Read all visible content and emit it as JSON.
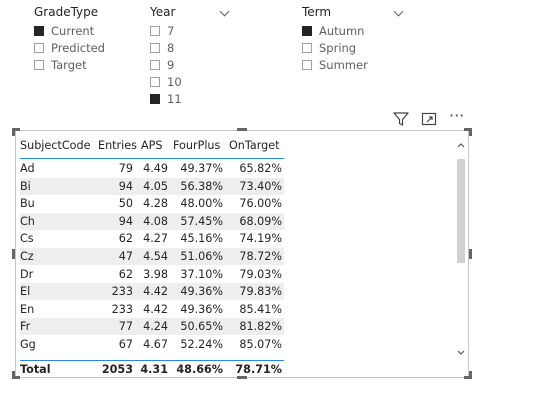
{
  "slicers": {
    "gradetype": {
      "title": "GradeType",
      "options": [
        {
          "label": "Current",
          "checked": true
        },
        {
          "label": "Predicted",
          "checked": false
        },
        {
          "label": "Target",
          "checked": false
        }
      ]
    },
    "year": {
      "title": "Year",
      "options": [
        {
          "label": "7",
          "checked": false
        },
        {
          "label": "8",
          "checked": false
        },
        {
          "label": "9",
          "checked": false
        },
        {
          "label": "10",
          "checked": false
        },
        {
          "label": "11",
          "checked": true
        }
      ]
    },
    "term": {
      "title": "Term",
      "options": [
        {
          "label": "Autumn",
          "checked": true
        },
        {
          "label": "Spring",
          "checked": false
        },
        {
          "label": "Summer",
          "checked": false
        }
      ]
    }
  },
  "visual_header": {
    "icons": [
      "filter-icon",
      "focus-mode-icon",
      "more-options-icon"
    ],
    "more_glyph": "···"
  },
  "table": {
    "columns": [
      "SubjectCode",
      "Entries",
      "APS",
      "FourPlus",
      "OnTarget"
    ],
    "rows": [
      [
        "Ad",
        "79",
        "4.49",
        "49.37%",
        "65.82%"
      ],
      [
        "Bi",
        "94",
        "4.05",
        "56.38%",
        "73.40%"
      ],
      [
        "Bu",
        "50",
        "4.28",
        "48.00%",
        "76.00%"
      ],
      [
        "Ch",
        "94",
        "4.08",
        "57.45%",
        "68.09%"
      ],
      [
        "Cs",
        "62",
        "4.27",
        "45.16%",
        "74.19%"
      ],
      [
        "Cz",
        "47",
        "4.54",
        "51.06%",
        "78.72%"
      ],
      [
        "Dr",
        "62",
        "3.98",
        "37.10%",
        "79.03%"
      ],
      [
        "El",
        "233",
        "4.42",
        "49.36%",
        "79.83%"
      ],
      [
        "En",
        "233",
        "4.42",
        "49.36%",
        "85.41%"
      ],
      [
        "Fr",
        "77",
        "4.24",
        "50.65%",
        "81.82%"
      ],
      [
        "Gg",
        "67",
        "4.67",
        "52.24%",
        "85.07%"
      ]
    ],
    "total": [
      "Total",
      "2053",
      "4.31",
      "48.66%",
      "78.71%"
    ]
  },
  "colors": {
    "header_underline": "#2b88d8",
    "row_shade": "#eeeeee",
    "checkbox_on": "#252423"
  }
}
